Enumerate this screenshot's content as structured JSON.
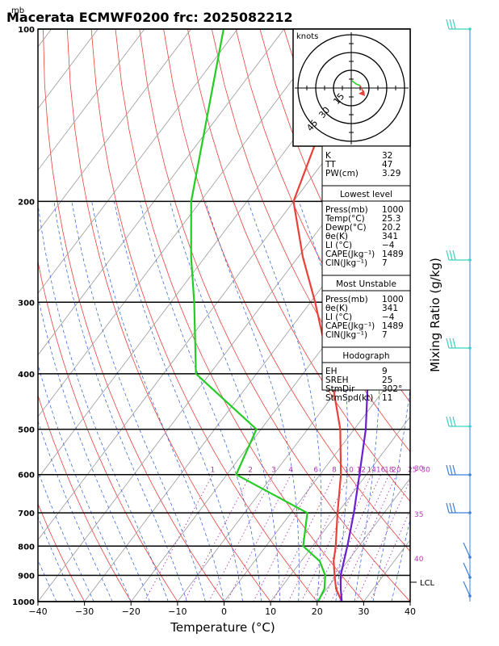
{
  "title": "Macerata ECMWF0200 frc: 2025082212",
  "unit_mb": "mb",
  "chart_data": {
    "type": "line",
    "xlabel": "Temperature (°C)",
    "ylabel": "Mixing Ratio (g/kg)",
    "xlim": [
      -40,
      40
    ],
    "ylim_pressure": [
      1000,
      100
    ],
    "x_ticks": [
      "−40",
      "−30",
      "−20",
      "−10",
      "0",
      "10",
      "20",
      "30",
      "40"
    ],
    "p_ticks": [
      "1000",
      "900",
      "800",
      "700",
      "600",
      "500",
      "400",
      "300",
      "200",
      "100"
    ],
    "mixing_ratio_labels": [
      "1",
      "2",
      "3",
      "4",
      "6",
      "8",
      "10",
      "12",
      "14",
      "16",
      "18",
      "20",
      "25",
      "30"
    ],
    "theta_e_labels": [
      "30",
      "35",
      "40"
    ],
    "lcl_label": "LCL",
    "series": [
      {
        "name": "temperature",
        "color": "#e8403a",
        "points": [
          [
            1000,
            25.3
          ],
          [
            950,
            22
          ],
          [
            900,
            19.5
          ],
          [
            850,
            17
          ],
          [
            800,
            15
          ],
          [
            700,
            10
          ],
          [
            600,
            4.5
          ],
          [
            500,
            -3
          ],
          [
            400,
            -14
          ],
          [
            300,
            -29
          ],
          [
            250,
            -39
          ],
          [
            200,
            -50
          ],
          [
            100,
            -64
          ]
        ]
      },
      {
        "name": "dewpoint",
        "color": "#22cc22",
        "points": [
          [
            1000,
            20.2
          ],
          [
            950,
            19.5
          ],
          [
            900,
            17.5
          ],
          [
            850,
            14
          ],
          [
            800,
            8
          ],
          [
            700,
            3.5
          ],
          [
            600,
            -18
          ],
          [
            500,
            -21
          ],
          [
            400,
            -43
          ],
          [
            300,
            -55
          ],
          [
            250,
            -63
          ],
          [
            200,
            -72
          ],
          [
            100,
            -93
          ]
        ]
      },
      {
        "name": "parcel",
        "color": "#6a1fd1",
        "points": [
          [
            1000,
            25.3
          ],
          [
            950,
            23
          ],
          [
            900,
            20.8
          ],
          [
            850,
            19.2
          ],
          [
            800,
            17.5
          ],
          [
            700,
            13.5
          ],
          [
            600,
            8.5
          ],
          [
            500,
            2.5
          ],
          [
            400,
            -6
          ],
          [
            300,
            -19
          ],
          [
            200,
            -40
          ],
          [
            100,
            -78
          ]
        ]
      }
    ]
  },
  "hodograph": {
    "units": "knots",
    "ring_labels": [
      "15",
      "30",
      "45"
    ]
  },
  "indices": {
    "top": [
      [
        "K",
        "32"
      ],
      [
        "TT",
        "47"
      ],
      [
        "PW(cm)",
        "3.29"
      ]
    ],
    "lowest_title": "Lowest level",
    "lowest": [
      [
        "Press(mb)",
        "1000"
      ],
      [
        "Temp(°C)",
        "25.3"
      ],
      [
        "Dewp(°C)",
        "20.2"
      ],
      [
        "θe(K)",
        "341"
      ],
      [
        "LI (°C)",
        "−4"
      ],
      [
        "CAPE(Jkg⁻¹)",
        "1489"
      ],
      [
        "CIN(Jkg⁻¹)",
        "7"
      ]
    ],
    "mu_title": "Most Unstable",
    "mu": [
      [
        "Press(mb)",
        "1000"
      ],
      [
        "θe(K)",
        "341"
      ],
      [
        "LI (°C)",
        "−4"
      ],
      [
        "CAPE(Jkg⁻¹)",
        "1489"
      ],
      [
        "CIN(Jkg⁻¹)",
        "7"
      ]
    ],
    "hodo_title": "Hodograph",
    "hodo": [
      [
        "EH",
        "9"
      ],
      [
        "SREH",
        "25"
      ],
      [
        "StmDir",
        "302°"
      ],
      [
        "StmSpd(kt)",
        "11"
      ]
    ]
  }
}
